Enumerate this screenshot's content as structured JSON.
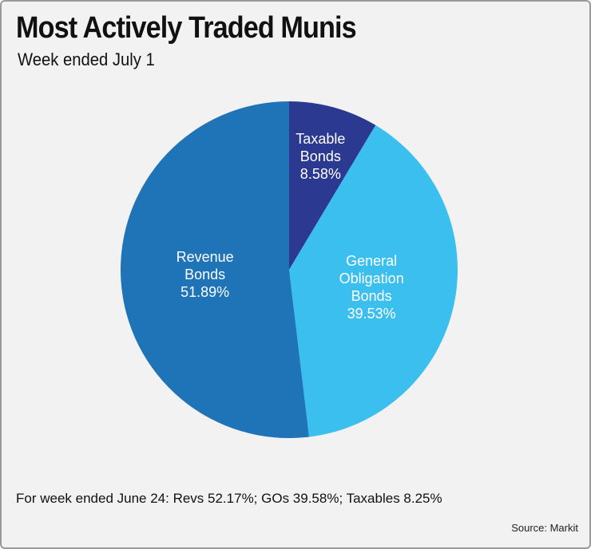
{
  "chart_data": {
    "type": "pie",
    "title": "Most Actively Traded Munis",
    "subtitle": "Week ended July 1",
    "categories": [
      "Taxable Bonds",
      "General Obligation Bonds",
      "Revenue Bonds"
    ],
    "values": [
      8.58,
      39.53,
      51.89
    ],
    "value_labels": [
      "8.58%",
      "39.53%",
      "51.89%"
    ],
    "colors": [
      "#2b3990",
      "#3bbfef",
      "#1f74b8"
    ],
    "note": "For week ended June 24: Revs 52.17%; GOs 39.58%; Taxables 8.25%",
    "source": "Source: Markit"
  }
}
